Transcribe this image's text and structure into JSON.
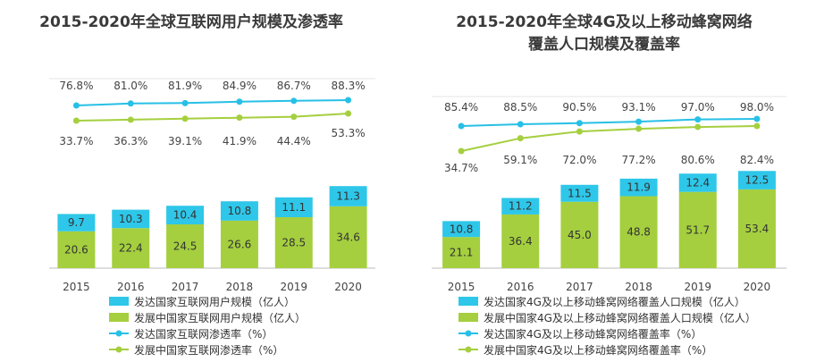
{
  "colors": {
    "developed": "#2ec7e9",
    "developing": "#a5cf3f",
    "developed_line": "#27c0e6",
    "developing_line": "#a5cf3f",
    "axis": "#bbbbbb",
    "grid": "#e4e4e4"
  },
  "chart_data": [
    {
      "type": "bar",
      "title": "2015-2020年全球互联网用户规模及渗透率",
      "categories": [
        "2015",
        "2016",
        "2017",
        "2018",
        "2019",
        "2020"
      ],
      "series": [
        {
          "name": "发达国家互联网用户规模（亿人）",
          "kind": "bar",
          "stack": "users",
          "values": [
            9.7,
            10.3,
            10.4,
            10.8,
            11.1,
            11.3
          ]
        },
        {
          "name": "发展中国家互联网用户规模（亿人）",
          "kind": "bar",
          "stack": "users",
          "values": [
            20.6,
            22.4,
            24.5,
            26.6,
            28.5,
            34.6
          ]
        },
        {
          "name": "发达国家互联网渗透率（%）",
          "kind": "line",
          "values": [
            76.8,
            81.0,
            81.9,
            84.9,
            86.7,
            88.3
          ]
        },
        {
          "name": "发展中国家互联网渗透率（%）",
          "kind": "line",
          "values": [
            33.7,
            36.3,
            39.1,
            41.9,
            44.4,
            53.3
          ]
        }
      ],
      "bar_labels": {
        "developed": [
          "9.7",
          "10.3",
          "10.4",
          "10.8",
          "11.1",
          "11.3"
        ],
        "developing": [
          "20.6",
          "22.4",
          "24.5",
          "26.6",
          "28.5",
          "34.6"
        ]
      },
      "line_labels": {
        "developed": [
          "76.8%",
          "81.0%",
          "81.9%",
          "84.9%",
          "86.7%",
          "88.3%"
        ],
        "developing": [
          "33.7%",
          "36.3%",
          "39.1%",
          "41.9%",
          "44.4%",
          "53.3%"
        ]
      },
      "legend": [
        "发达国家互联网用户规模（亿人）",
        "发展中国家互联网用户规模（亿人）",
        "发达国家互联网渗透率（%）",
        "发展中国家互联网渗透率（%）"
      ],
      "xlabel": "",
      "ylabel": "",
      "ylim_bar": [
        0,
        70
      ],
      "ylim_line": [
        0,
        100
      ],
      "grid": true
    },
    {
      "type": "bar",
      "title": "2015-2020年全球4G及以上移动蜂窝网络覆盖人口规模及覆盖率",
      "title_lines": [
        "2015-2020年全球4G及以上移动蜂窝网络",
        "覆盖人口规模及覆盖率"
      ],
      "categories": [
        "2015",
        "2016",
        "2017",
        "2018",
        "2019",
        "2020"
      ],
      "series": [
        {
          "name": "发达国家4G及以上移动蜂窝网络覆盖人口规模（亿人）",
          "kind": "bar",
          "stack": "pop",
          "values": [
            10.8,
            11.2,
            11.5,
            11.9,
            12.4,
            12.5
          ]
        },
        {
          "name": "发展中国家4G及以上移动蜂窝网络覆盖人口规模（亿人）",
          "kind": "bar",
          "stack": "pop",
          "values": [
            21.1,
            36.4,
            45.0,
            48.8,
            51.7,
            53.4
          ]
        },
        {
          "name": "发达国家4G及以上移动蜂窝网络覆盖率（%）",
          "kind": "line",
          "values": [
            85.4,
            88.5,
            90.5,
            93.1,
            97.0,
            98.0
          ]
        },
        {
          "name": "发展中国家4G及以上移动蜂窝网络覆盖率（%）",
          "kind": "line",
          "values": [
            34.7,
            59.1,
            72.0,
            77.2,
            80.6,
            82.4
          ]
        }
      ],
      "bar_labels": {
        "developed": [
          "10.8",
          "11.2",
          "11.5",
          "11.9",
          "12.4",
          "12.5"
        ],
        "developing": [
          "21.1",
          "36.4",
          "45.0",
          "48.8",
          "51.7",
          "53.4"
        ]
      },
      "line_labels": {
        "developed": [
          "85.4%",
          "88.5%",
          "90.5%",
          "93.1%",
          "97.0%",
          "98.0%"
        ],
        "developing": [
          "34.7%",
          "59.1%",
          "72.0%",
          "77.2%",
          "80.6%",
          "82.4%"
        ]
      },
      "legend": [
        "发达国家4G及以上移动蜂窝网络覆盖人口规模（亿人）",
        "发展中国家4G及以上移动蜂窝网络覆盖人口规模（亿人）",
        "发达国家4G及以上移动蜂窝网络覆盖率（%）",
        "发展中国家4G及以上移动蜂窝网络覆盖率（%）"
      ],
      "xlabel": "",
      "ylabel": "",
      "ylim_bar": [
        0,
        104
      ],
      "ylim_line": [
        0,
        118
      ],
      "grid": true
    }
  ]
}
